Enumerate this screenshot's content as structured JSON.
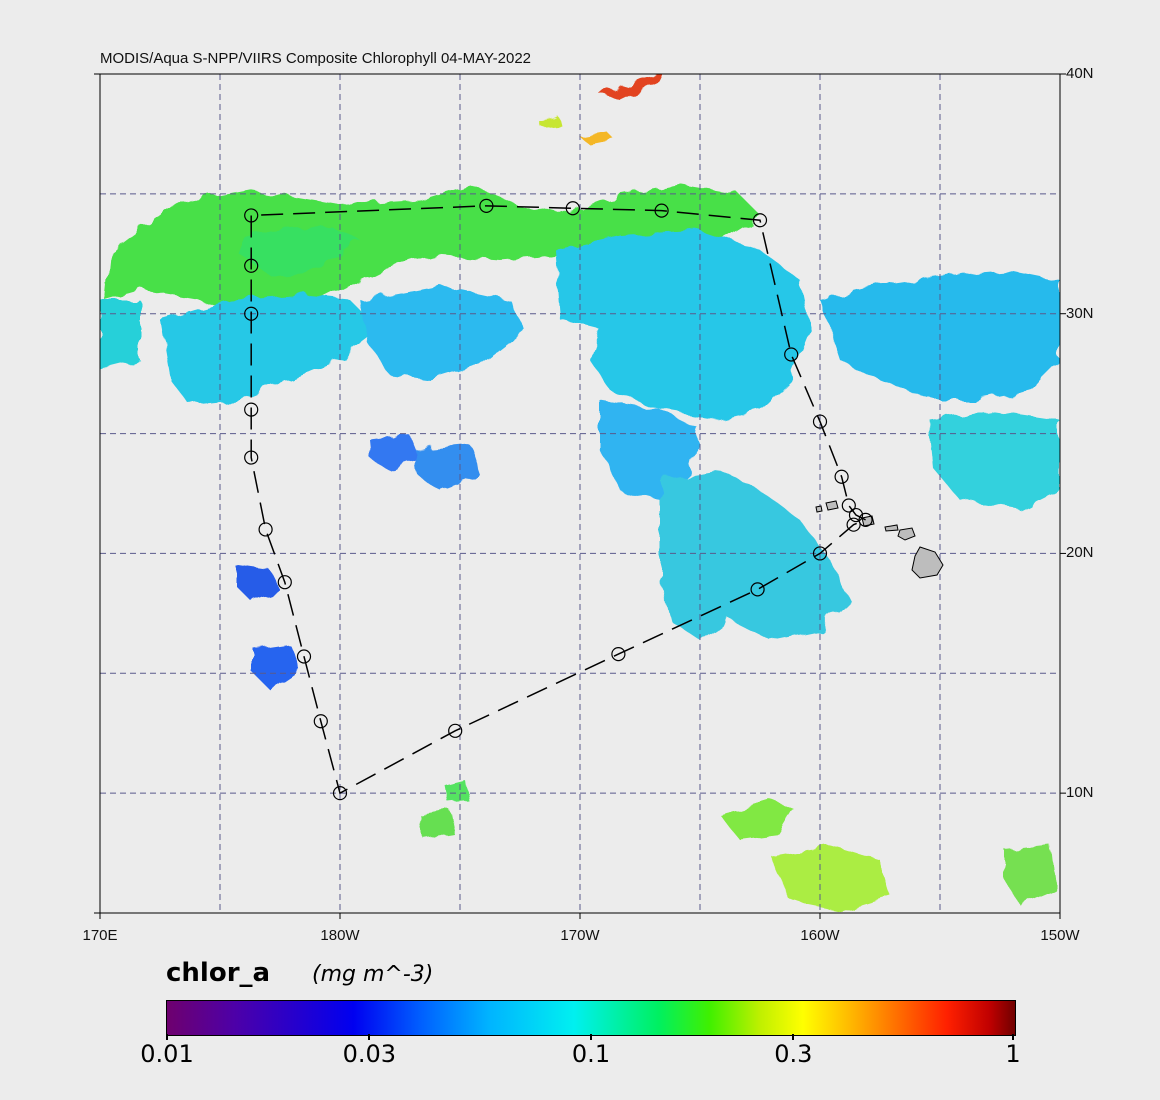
{
  "title": "MODIS/Aqua S-NPP/VIIRS Composite Chlorophyll 04-MAY-2022",
  "map": {
    "longitude_labels": [
      "170E",
      "180W",
      "170W",
      "160W",
      "150W"
    ],
    "latitude_labels": [
      "40N",
      "30N",
      "20N",
      "10N"
    ],
    "lon_range_east": [
      170,
      210
    ],
    "lat_range": [
      5,
      40
    ],
    "gridline_style": "dashed",
    "gridline_color": "#5a5a8c",
    "land_color": "#bdbdbd",
    "route_color": "#000000",
    "route_style": "dashed line with circle waypoints",
    "route_waypoints": [
      [
        201.9,
        21.4
      ],
      [
        201.5,
        21.6
      ],
      [
        201.2,
        22.0
      ],
      [
        200.9,
        23.2
      ],
      [
        200.0,
        25.5
      ],
      [
        198.8,
        28.3
      ],
      [
        197.5,
        33.9
      ],
      [
        193.4,
        34.3
      ],
      [
        189.7,
        34.4
      ],
      [
        186.1,
        34.5
      ],
      [
        176.3,
        34.1
      ],
      [
        176.3,
        32.0
      ],
      [
        176.3,
        30.0
      ],
      [
        176.3,
        26.0
      ],
      [
        176.3,
        24.0
      ],
      [
        176.9,
        21.0
      ],
      [
        177.7,
        18.8
      ],
      [
        178.5,
        15.7
      ],
      [
        179.2,
        13.0
      ],
      [
        180.0,
        10.0
      ],
      [
        184.8,
        12.6
      ],
      [
        191.6,
        15.8
      ],
      [
        197.4,
        18.5
      ],
      [
        200.0,
        20.0
      ],
      [
        201.4,
        21.2
      ],
      [
        201.9,
        21.4
      ]
    ]
  },
  "colorbar": {
    "variable": "chlor_a",
    "units": "(mg m^-3)",
    "scale": "log",
    "tick_labels": [
      "0.01",
      "0.03",
      "0.1",
      "0.3",
      "1"
    ],
    "tick_values": [
      0.01,
      0.03,
      0.1,
      0.3,
      1
    ],
    "range": [
      0.01,
      1
    ]
  }
}
